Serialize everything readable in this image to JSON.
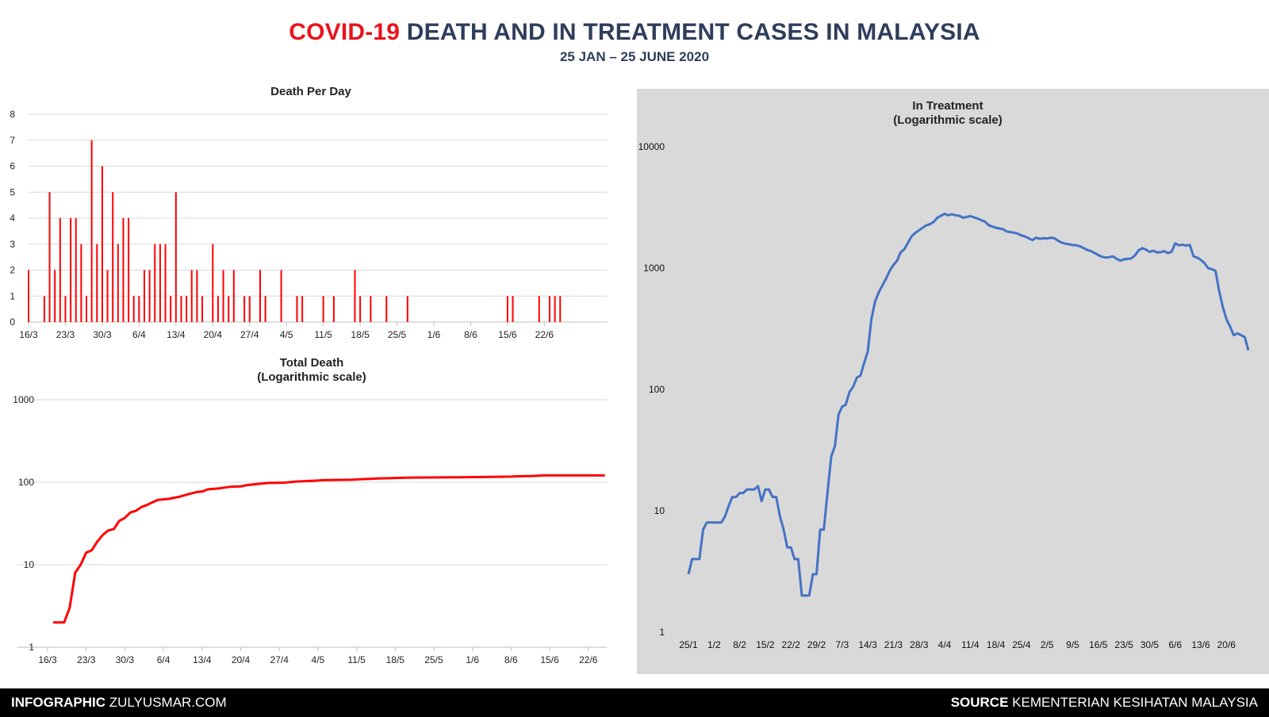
{
  "header": {
    "title_highlight": "COVID-19",
    "title_rest": " DEATH AND IN TREATMENT CASES IN MALAYSIA",
    "subtitle": "25 JAN – 25 JUNE 2020"
  },
  "footer": {
    "left_bold": "INFOGRAPHIC",
    "left_rest": " ZULYUSMAR.COM",
    "right_bold": "SOURCE",
    "right_rest": " KEMENTERIAN KESIHATAN MALAYSIA"
  },
  "colors": {
    "death": "#ff0000",
    "treatment": "#4472c4",
    "title_dark": "#2f3d5c",
    "panel": "#d9d9d9"
  },
  "chart_data": [
    {
      "type": "bar",
      "title": "Death Per Day",
      "x_tick_labels": [
        "16/3",
        "23/3",
        "30/3",
        "6/4",
        "13/4",
        "20/4",
        "27/4",
        "4/5",
        "11/5",
        "18/5",
        "25/5",
        "1/6",
        "8/6",
        "15/6",
        "22/6"
      ],
      "ylim": [
        0,
        8
      ],
      "y_ticks": [
        0,
        1,
        2,
        3,
        4,
        5,
        6,
        7,
        8
      ],
      "grid": true,
      "x_start_date": "2020-03-16",
      "values": [
        2,
        0,
        0,
        1,
        5,
        2,
        4,
        1,
        4,
        4,
        3,
        1,
        7,
        3,
        6,
        2,
        5,
        3,
        4,
        4,
        1,
        1,
        2,
        2,
        3,
        3,
        3,
        1,
        5,
        1,
        1,
        2,
        2,
        1,
        0,
        3,
        1,
        2,
        1,
        2,
        0,
        1,
        1,
        0,
        2,
        1,
        0,
        0,
        2,
        0,
        0,
        1,
        1,
        0,
        0,
        0,
        1,
        0,
        1,
        0,
        0,
        0,
        2,
        1,
        0,
        1,
        0,
        0,
        1,
        0,
        0,
        0,
        1,
        0,
        0,
        0,
        0,
        0,
        0,
        0,
        0,
        0,
        0,
        0,
        0,
        0,
        0,
        0,
        0,
        0,
        0,
        1,
        1,
        0,
        0,
        0,
        0,
        1,
        0,
        1,
        1,
        1,
        0,
        0,
        0,
        0,
        0,
        0,
        0,
        0,
        0
      ]
    },
    {
      "type": "line",
      "title": "Total Death\n(Logarithmic scale)",
      "log_scale": true,
      "ylim": [
        1,
        1000
      ],
      "y_ticks": [
        1,
        10,
        100,
        1000
      ],
      "x_tick_labels": [
        "16/3",
        "23/3",
        "30/3",
        "6/4",
        "13/4",
        "20/4",
        "27/4",
        "4/5",
        "11/5",
        "18/5",
        "25/5",
        "1/6",
        "8/6",
        "15/6",
        "22/6"
      ],
      "x_start_date": "2020-03-16",
      "grid": true,
      "series": [
        {
          "points": [
            [
              "2020-03-17",
              2
            ],
            [
              "2020-03-18",
              2
            ],
            [
              "2020-03-19",
              2
            ],
            [
              "2020-03-20",
              3
            ],
            [
              "2020-03-21",
              8
            ],
            [
              "2020-03-22",
              10
            ],
            [
              "2020-03-23",
              14
            ],
            [
              "2020-03-24",
              15
            ],
            [
              "2020-03-25",
              19
            ],
            [
              "2020-03-26",
              23
            ],
            [
              "2020-03-27",
              26
            ],
            [
              "2020-03-28",
              27
            ],
            [
              "2020-03-29",
              34
            ],
            [
              "2020-03-30",
              37
            ],
            [
              "2020-03-31",
              43
            ],
            [
              "2020-04-01",
              45
            ],
            [
              "2020-04-02",
              50
            ],
            [
              "2020-04-03",
              53
            ],
            [
              "2020-04-04",
              57
            ],
            [
              "2020-04-05",
              61
            ],
            [
              "2020-04-06",
              62
            ],
            [
              "2020-04-07",
              63
            ],
            [
              "2020-04-08",
              65
            ],
            [
              "2020-04-09",
              67
            ],
            [
              "2020-04-10",
              70
            ],
            [
              "2020-04-11",
              73
            ],
            [
              "2020-04-12",
              76
            ],
            [
              "2020-04-13",
              77
            ],
            [
              "2020-04-14",
              82
            ],
            [
              "2020-04-15",
              83
            ],
            [
              "2020-04-16",
              84
            ],
            [
              "2020-04-17",
              86
            ],
            [
              "2020-04-18",
              88
            ],
            [
              "2020-04-20",
              89
            ],
            [
              "2020-04-21",
              92
            ],
            [
              "2020-04-23",
              95
            ],
            [
              "2020-04-25",
              98
            ],
            [
              "2020-04-28",
              99
            ],
            [
              "2020-04-30",
              102
            ],
            [
              "2020-05-03",
              104
            ],
            [
              "2020-05-05",
              106
            ],
            [
              "2020-05-10",
              107
            ],
            [
              "2020-05-12",
              109
            ],
            [
              "2020-05-15",
              111
            ],
            [
              "2020-05-21",
              114
            ],
            [
              "2020-05-30",
              115
            ],
            [
              "2020-06-08",
              117
            ],
            [
              "2020-06-09",
              118
            ],
            [
              "2020-06-12",
              119
            ],
            [
              "2020-06-14",
              121
            ],
            [
              "2020-06-25",
              121
            ]
          ]
        }
      ]
    },
    {
      "type": "line",
      "title": "In Treatment\n(Logarithmic scale)",
      "log_scale": true,
      "ylim": [
        1,
        10000
      ],
      "y_ticks": [
        1,
        10,
        100,
        1000,
        10000
      ],
      "x_tick_labels": [
        "25/1",
        "1/2",
        "8/2",
        "15/2",
        "22/2",
        "29/2",
        "7/3",
        "14/3",
        "21/3",
        "28/3",
        "4/4",
        "11/4",
        "18/4",
        "25/4",
        "2/5",
        "9/5",
        "16/5",
        "23/5",
        "30/5",
        "6/6",
        "13/6",
        "20/6"
      ],
      "x_start_date": "2020-01-25",
      "grid": false,
      "series": [
        {
          "points": [
            [
              "2020-01-25",
              3
            ],
            [
              "2020-01-26",
              4
            ],
            [
              "2020-01-28",
              4
            ],
            [
              "2020-01-29",
              7
            ],
            [
              "2020-01-30",
              8
            ],
            [
              "2020-02-03",
              8
            ],
            [
              "2020-02-04",
              9
            ],
            [
              "2020-02-05",
              11
            ],
            [
              "2020-02-06",
              13
            ],
            [
              "2020-02-07",
              13
            ],
            [
              "2020-02-08",
              14
            ],
            [
              "2020-02-09",
              14
            ],
            [
              "2020-02-10",
              15
            ],
            [
              "2020-02-12",
              15
            ],
            [
              "2020-02-13",
              16
            ],
            [
              "2020-02-14",
              12
            ],
            [
              "2020-02-15",
              15
            ],
            [
              "2020-02-16",
              15
            ],
            [
              "2020-02-17",
              13
            ],
            [
              "2020-02-18",
              13
            ],
            [
              "2020-02-19",
              9
            ],
            [
              "2020-02-20",
              7
            ],
            [
              "2020-02-21",
              5
            ],
            [
              "2020-02-22",
              5
            ],
            [
              "2020-02-23",
              4
            ],
            [
              "2020-02-24",
              4
            ],
            [
              "2020-02-25",
              2
            ],
            [
              "2020-02-27",
              2
            ],
            [
              "2020-02-28",
              3
            ],
            [
              "2020-02-29",
              3
            ],
            [
              "2020-03-01",
              7
            ],
            [
              "2020-03-02",
              7
            ],
            [
              "2020-03-03",
              14
            ],
            [
              "2020-03-04",
              28
            ],
            [
              "2020-03-05",
              34
            ],
            [
              "2020-03-06",
              62
            ],
            [
              "2020-03-07",
              72
            ],
            [
              "2020-03-08",
              75
            ],
            [
              "2020-03-09",
              95
            ],
            [
              "2020-03-10",
              105
            ],
            [
              "2020-03-11",
              125
            ],
            [
              "2020-03-12",
              130
            ],
            [
              "2020-03-13",
              165
            ],
            [
              "2020-03-14",
              205
            ],
            [
              "2020-03-15",
              380
            ],
            [
              "2020-03-16",
              530
            ],
            [
              "2020-03-17",
              630
            ],
            [
              "2020-03-18",
              720
            ],
            [
              "2020-03-19",
              820
            ],
            [
              "2020-03-20",
              950
            ],
            [
              "2020-03-21",
              1060
            ],
            [
              "2020-03-22",
              1150
            ],
            [
              "2020-03-23",
              1350
            ],
            [
              "2020-03-24",
              1430
            ],
            [
              "2020-03-25",
              1620
            ],
            [
              "2020-03-26",
              1830
            ],
            [
              "2020-03-27",
              1950
            ],
            [
              "2020-03-28",
              2050
            ],
            [
              "2020-03-29",
              2150
            ],
            [
              "2020-03-30",
              2250
            ],
            [
              "2020-03-31",
              2300
            ],
            [
              "2020-04-01",
              2400
            ],
            [
              "2020-04-02",
              2600
            ],
            [
              "2020-04-03",
              2700
            ],
            [
              "2020-04-04",
              2800
            ],
            [
              "2020-04-05",
              2720
            ],
            [
              "2020-04-06",
              2780
            ],
            [
              "2020-04-07",
              2720
            ],
            [
              "2020-04-08",
              2700
            ],
            [
              "2020-04-09",
              2600
            ],
            [
              "2020-04-10",
              2640
            ],
            [
              "2020-04-11",
              2680
            ],
            [
              "2020-04-12",
              2620
            ],
            [
              "2020-04-13",
              2560
            ],
            [
              "2020-04-14",
              2480
            ],
            [
              "2020-04-15",
              2420
            ],
            [
              "2020-04-16",
              2260
            ],
            [
              "2020-04-17",
              2200
            ],
            [
              "2020-04-18",
              2150
            ],
            [
              "2020-04-19",
              2120
            ],
            [
              "2020-04-20",
              2090
            ],
            [
              "2020-04-21",
              2000
            ],
            [
              "2020-04-22",
              1980
            ],
            [
              "2020-04-23",
              1960
            ],
            [
              "2020-04-24",
              1920
            ],
            [
              "2020-04-25",
              1860
            ],
            [
              "2020-04-26",
              1820
            ],
            [
              "2020-04-27",
              1760
            ],
            [
              "2020-04-28",
              1700
            ],
            [
              "2020-04-29",
              1780
            ],
            [
              "2020-04-30",
              1740
            ],
            [
              "2020-05-01",
              1760
            ],
            [
              "2020-05-02",
              1750
            ],
            [
              "2020-05-03",
              1780
            ],
            [
              "2020-05-04",
              1760
            ],
            [
              "2020-05-05",
              1680
            ],
            [
              "2020-05-06",
              1620
            ],
            [
              "2020-05-07",
              1590
            ],
            [
              "2020-05-08",
              1570
            ],
            [
              "2020-05-09",
              1550
            ],
            [
              "2020-05-10",
              1540
            ],
            [
              "2020-05-11",
              1510
            ],
            [
              "2020-05-12",
              1460
            ],
            [
              "2020-05-13",
              1410
            ],
            [
              "2020-05-14",
              1380
            ],
            [
              "2020-05-15",
              1330
            ],
            [
              "2020-05-16",
              1280
            ],
            [
              "2020-05-17",
              1240
            ],
            [
              "2020-05-18",
              1220
            ],
            [
              "2020-05-19",
              1230
            ],
            [
              "2020-05-20",
              1250
            ],
            [
              "2020-05-21",
              1190
            ],
            [
              "2020-05-22",
              1150
            ],
            [
              "2020-05-23",
              1180
            ],
            [
              "2020-05-24",
              1190
            ],
            [
              "2020-05-25",
              1200
            ],
            [
              "2020-05-26",
              1270
            ],
            [
              "2020-05-27",
              1400
            ],
            [
              "2020-05-28",
              1460
            ],
            [
              "2020-05-29",
              1420
            ],
            [
              "2020-05-30",
              1360
            ],
            [
              "2020-05-31",
              1390
            ],
            [
              "2020-06-01",
              1350
            ],
            [
              "2020-06-02",
              1350
            ],
            [
              "2020-06-03",
              1380
            ],
            [
              "2020-06-04",
              1330
            ],
            [
              "2020-06-05",
              1360
            ],
            [
              "2020-06-06",
              1600
            ],
            [
              "2020-06-07",
              1540
            ],
            [
              "2020-06-08",
              1560
            ],
            [
              "2020-06-09",
              1530
            ],
            [
              "2020-06-10",
              1550
            ],
            [
              "2020-06-11",
              1250
            ],
            [
              "2020-06-12",
              1220
            ],
            [
              "2020-06-13",
              1170
            ],
            [
              "2020-06-14",
              1100
            ],
            [
              "2020-06-15",
              1000
            ],
            [
              "2020-06-16",
              980
            ],
            [
              "2020-06-17",
              950
            ],
            [
              "2020-06-18",
              650
            ],
            [
              "2020-06-19",
              480
            ],
            [
              "2020-06-20",
              380
            ],
            [
              "2020-06-21",
              330
            ],
            [
              "2020-06-22",
              280
            ],
            [
              "2020-06-23",
              290
            ],
            [
              "2020-06-24",
              280
            ],
            [
              "2020-06-25",
              270
            ],
            [
              "2020-06-26",
              210
            ]
          ]
        }
      ]
    }
  ]
}
